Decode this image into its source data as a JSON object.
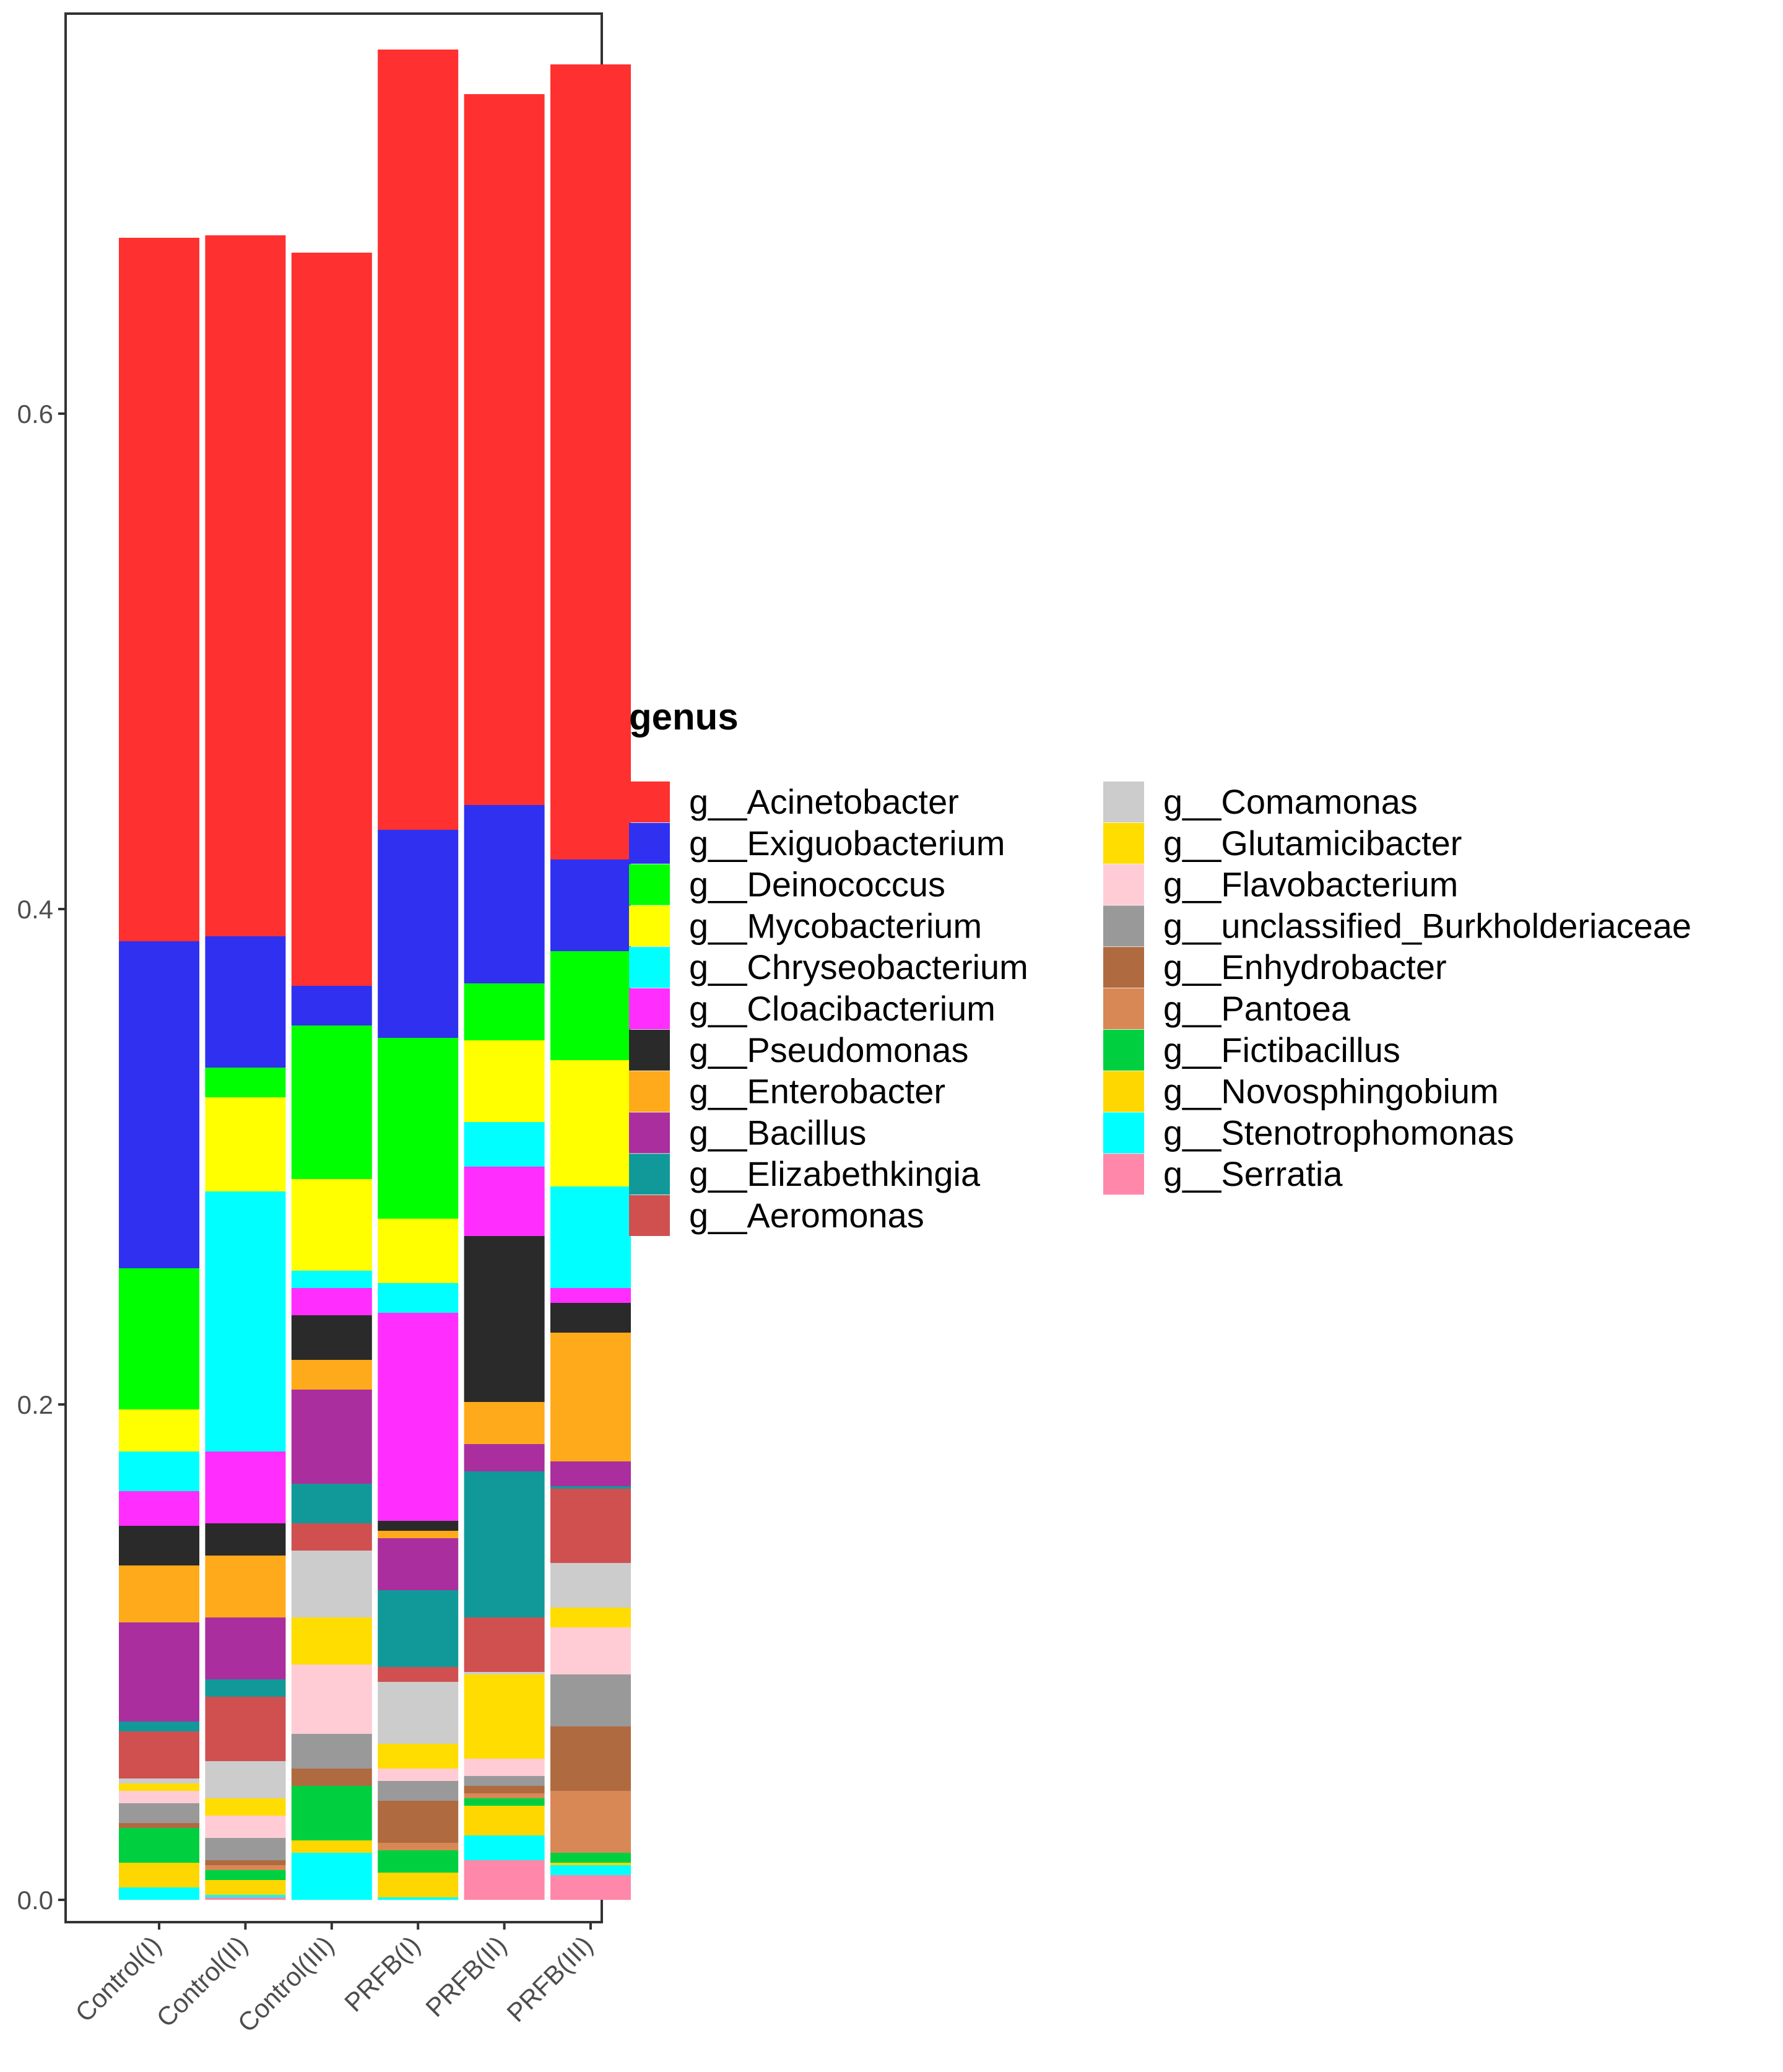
{
  "chart_data": {
    "type": "bar",
    "stacked": true,
    "title": "",
    "xlabel": "",
    "ylabel": "",
    "ylim": [
      0,
      0.75
    ],
    "y_ticks": [
      {
        "value": 0.0,
        "label": "0.0"
      },
      {
        "value": 0.2,
        "label": "0.2"
      },
      {
        "value": 0.4,
        "label": "0.4"
      },
      {
        "value": 0.6,
        "label": "0.6"
      }
    ],
    "categories": [
      "Control(I)",
      "Control(II)",
      "Control(III)",
      "PRFB(I)",
      "PRFB(II)",
      "PRFB(III)"
    ],
    "legend_title": "genus",
    "series": [
      {
        "name": "g__Serratia",
        "color": "#FF88AA",
        "values": [
          0.0,
          0.001,
          0.0,
          0.0,
          0.016,
          0.01
        ]
      },
      {
        "name": "g__Stenotrophomonas",
        "color": "#00FFFF",
        "values": [
          0.005,
          0.001,
          0.019,
          0.001,
          0.01,
          0.004
        ]
      },
      {
        "name": "g__Novosphingobium",
        "color": "#FFD700",
        "values": [
          0.01,
          0.006,
          0.005,
          0.01,
          0.012,
          0.001
        ]
      },
      {
        "name": "g__Fictibacillus",
        "color": "#00D040",
        "values": [
          0.014,
          0.004,
          0.022,
          0.009,
          0.003,
          0.004
        ]
      },
      {
        "name": "g__Pantoea",
        "color": "#D88855",
        "values": [
          0.0,
          0.002,
          0.0,
          0.003,
          0.002,
          0.025
        ]
      },
      {
        "name": "g__Enhydrobacter",
        "color": "#B06A40",
        "values": [
          0.002,
          0.002,
          0.007,
          0.017,
          0.003,
          0.026
        ]
      },
      {
        "name": "g__unclassified_Burkholderiaceae",
        "color": "#999999",
        "values": [
          0.008,
          0.009,
          0.014,
          0.008,
          0.004,
          0.021
        ]
      },
      {
        "name": "g__Flavobacterium",
        "color": "#FFCCD5",
        "values": [
          0.005,
          0.009,
          0.028,
          0.005,
          0.007,
          0.019
        ]
      },
      {
        "name": "g__Glutamicibacter",
        "color": "#FFDD00",
        "values": [
          0.003,
          0.007,
          0.019,
          0.01,
          0.034,
          0.008
        ]
      },
      {
        "name": "g__Comamonas",
        "color": "#CCCCCC",
        "values": [
          0.002,
          0.015,
          0.027,
          0.025,
          0.001,
          0.018
        ]
      },
      {
        "name": "g__Aeromonas",
        "color": "#D05050",
        "values": [
          0.019,
          0.026,
          0.011,
          0.006,
          0.022,
          0.03
        ]
      },
      {
        "name": "g__Elizabethkingia",
        "color": "#119999",
        "values": [
          0.004,
          0.007,
          0.016,
          0.031,
          0.059,
          0.001
        ]
      },
      {
        "name": "g__Bacillus",
        "color": "#AA2E9E",
        "values": [
          0.04,
          0.025,
          0.038,
          0.021,
          0.011,
          0.01
        ]
      },
      {
        "name": "g__Enterobacter",
        "color": "#FFAA1A",
        "values": [
          0.023,
          0.025,
          0.012,
          0.003,
          0.017,
          0.052
        ]
      },
      {
        "name": "g__Pseudomonas",
        "color": "#2A2A2A",
        "values": [
          0.016,
          0.013,
          0.018,
          0.004,
          0.067,
          0.012
        ]
      },
      {
        "name": "g__Cloacibacterium",
        "color": "#FF2EFF",
        "values": [
          0.014,
          0.029,
          0.011,
          0.084,
          0.028,
          0.006
        ]
      },
      {
        "name": "g__Chryseobacterium",
        "color": "#00FFFF",
        "values": [
          0.016,
          0.105,
          0.007,
          0.012,
          0.018,
          0.041
        ]
      },
      {
        "name": "g__Mycobacterium",
        "color": "#FFFF00",
        "values": [
          0.017,
          0.038,
          0.037,
          0.026,
          0.033,
          0.051
        ]
      },
      {
        "name": "g__Deinococcus",
        "color": "#00FF00",
        "values": [
          0.057,
          0.012,
          0.062,
          0.073,
          0.023,
          0.044
        ]
      },
      {
        "name": "g__Exiguobacterium",
        "color": "#3030F0",
        "values": [
          0.132,
          0.053,
          0.016,
          0.084,
          0.072,
          0.037
        ]
      },
      {
        "name": "g__Acinetobacter",
        "color": "#FF3030",
        "values": [
          0.284,
          0.283,
          0.296,
          0.315,
          0.287,
          0.321
        ]
      }
    ],
    "legend_columns": [
      [
        "g__Acinetobacter",
        "g__Exiguobacterium",
        "g__Deinococcus",
        "g__Mycobacterium",
        "g__Chryseobacterium",
        "g__Cloacibacterium",
        "g__Pseudomonas",
        "g__Enterobacter",
        "g__Bacillus",
        "g__Elizabethkingia",
        "g__Aeromonas"
      ],
      [
        "g__Comamonas",
        "g__Glutamicibacter",
        "g__Flavobacterium",
        "g__unclassified_Burkholderiaceae",
        "g__Enhydrobacter",
        "g__Pantoea",
        "g__Fictibacillus",
        "g__Novosphingobium",
        "g__Stenotrophomonas",
        "g__Serratia"
      ]
    ],
    "legend_position": "right",
    "grid": false
  }
}
